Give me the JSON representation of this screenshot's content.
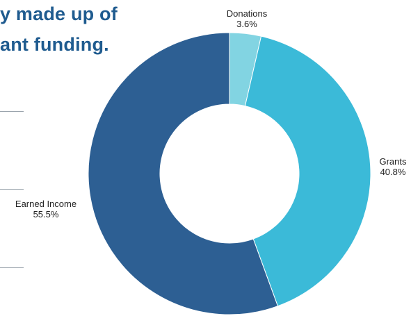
{
  "headline": {
    "line1": "y made up of",
    "line2": "ant funding."
  },
  "chart_data": {
    "type": "pie",
    "style": "donut",
    "title": "",
    "slices": [
      {
        "label": "Donations",
        "value_label": "3.6%",
        "value": 3.6,
        "color": "#82d4e2"
      },
      {
        "label": "Grants",
        "value_label": "40.8%",
        "value": 40.8,
        "color": "#3bbad8"
      },
      {
        "label": "Earned Income",
        "value_label": "55.5%",
        "value": 55.5,
        "color": "#2d5f93"
      }
    ],
    "start_angle": "12 o'clock",
    "direction": "clockwise"
  }
}
